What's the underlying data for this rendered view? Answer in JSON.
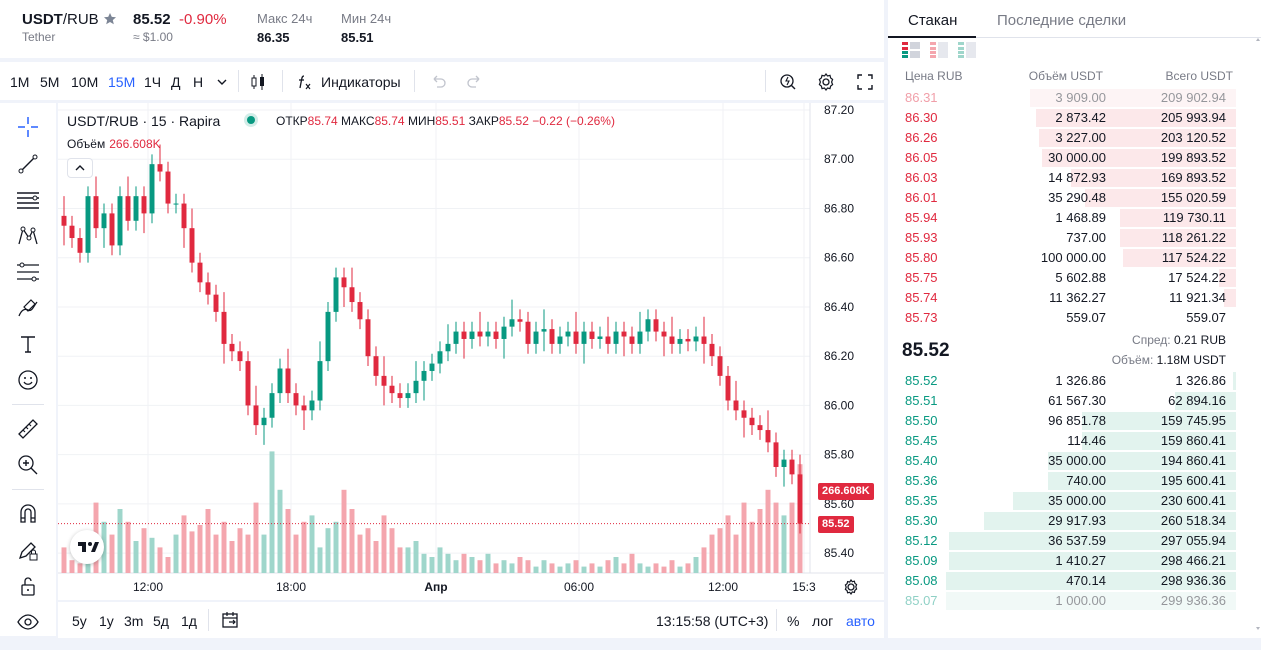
{
  "header": {
    "symbol_base": "USDT",
    "symbol_quote": "RUB",
    "asset_name": "Tether",
    "last_price": "85.52",
    "change_pct": "-0.90%",
    "approx_usd": "≈ $1.00",
    "high_label": "Макс 24ч",
    "high_value": "86.35",
    "low_label": "Мин 24ч",
    "low_value": "85.51"
  },
  "toolbar": {
    "timeframes": [
      "1М",
      "5М",
      "10М",
      "15М",
      "1Ч",
      "Д",
      "Н"
    ],
    "active_timeframe": "15М",
    "indicators_label": "Индикаторы",
    "icons": [
      "chevron-down-icon",
      "candles-icon",
      "fx-icon",
      "undo-icon",
      "redo-icon",
      "quick-search-icon",
      "settings-icon",
      "fullscreen-icon"
    ]
  },
  "left_tools": [
    "crosshair-icon",
    "trend-line-icon",
    "horizontal-lines-icon",
    "pattern-icon",
    "fib-icon",
    "brush-icon",
    "text-icon",
    "emoji-icon",
    "ruler-icon",
    "zoom-in-icon",
    "magnet-icon",
    "lock-drawing-icon",
    "lock-icon",
    "eye-icon"
  ],
  "chart": {
    "title": "USDT/RUB · 15 · Rapira",
    "ohlc": {
      "open_label": "ОТКР",
      "open": "85.74",
      "high_label": "МАКС",
      "high": "85.74",
      "low_label": "МИН",
      "low": "85.51",
      "close_label": "ЗАКР",
      "close": "85.52",
      "change": "−0.22 (−0.26%)"
    },
    "volume_label": "Объём",
    "volume_value": "266.608K",
    "price_tag": "85.52",
    "volume_tag": "266.608K",
    "colors": {
      "up": "#089981",
      "down": "#e0293f",
      "up_vol": "#9fd6cb",
      "down_vol": "#f4a6ae"
    }
  },
  "chart_data": {
    "type": "candlestick",
    "y_ticks": [
      "87.20",
      "87.00",
      "86.80",
      "86.60",
      "86.40",
      "86.20",
      "86.00",
      "85.80",
      "85.60",
      "85.40"
    ],
    "ylim": [
      85.36,
      87.2
    ],
    "x_ticks": [
      "12:00",
      "18:00",
      "Апр",
      "06:00",
      "12:00",
      "15:3"
    ],
    "close_series": [
      86.73,
      86.68,
      86.62,
      86.85,
      86.72,
      86.78,
      86.65,
      86.85,
      86.75,
      86.85,
      86.78,
      86.98,
      86.95,
      86.82,
      86.82,
      86.72,
      86.58,
      86.5,
      86.45,
      86.38,
      86.25,
      86.22,
      86.18,
      86.0,
      85.92,
      85.95,
      86.05,
      86.15,
      86.05,
      86.0,
      85.98,
      86.02,
      86.18,
      86.38,
      86.52,
      86.48,
      86.42,
      86.35,
      86.2,
      86.12,
      86.08,
      86.05,
      86.03,
      86.05,
      86.1,
      86.14,
      86.17,
      86.22,
      86.25,
      86.3,
      86.27,
      86.3,
      86.28,
      86.3,
      86.27,
      86.32,
      86.35,
      86.34,
      86.25,
      86.3,
      86.31,
      86.25,
      86.28,
      86.3,
      86.25,
      86.3,
      86.27,
      86.28,
      86.25,
      86.3,
      86.28,
      86.25,
      86.3,
      86.35,
      86.3,
      86.28,
      86.25,
      86.27,
      86.26,
      86.28,
      86.25,
      86.2,
      86.12,
      86.02,
      85.98,
      85.95,
      85.92,
      85.9,
      85.85,
      85.75,
      85.78,
      85.72,
      85.52
    ],
    "volume_series": [
      0.08,
      0.04,
      0.03,
      0.06,
      0.22,
      0.16,
      0.12,
      0.2,
      0.16,
      0.1,
      0.14,
      0.11,
      0.08,
      0.05,
      0.12,
      0.18,
      0.13,
      0.15,
      0.2,
      0.12,
      0.16,
      0.1,
      0.14,
      0.12,
      0.22,
      0.12,
      0.38,
      0.26,
      0.2,
      0.12,
      0.16,
      0.18,
      0.08,
      0.14,
      0.16,
      0.26,
      0.2,
      0.12,
      0.14,
      0.1,
      0.18,
      0.14,
      0.08,
      0.08,
      0.1,
      0.06,
      0.05,
      0.08,
      0.06,
      0.04,
      0.06,
      0.05,
      0.04,
      0.06,
      0.03,
      0.04,
      0.03,
      0.05,
      0.04,
      0.02,
      0.04,
      0.03,
      0.02,
      0.03,
      0.04,
      0.02,
      0.03,
      0.02,
      0.04,
      0.05,
      0.03,
      0.06,
      0.03,
      0.02,
      0.03,
      0.02,
      0.04,
      0.02,
      0.03,
      0.05,
      0.08,
      0.12,
      0.14,
      0.18,
      0.12,
      0.22,
      0.16,
      0.2,
      0.26,
      0.22,
      0.18,
      0.22,
      0.34
    ]
  },
  "bottom": {
    "ranges": [
      "5y",
      "1y",
      "3m",
      "5д",
      "1д"
    ],
    "time": "13:15:58 (UTC+3)",
    "percent": "%",
    "log": "лог",
    "auto": "авто"
  },
  "book": {
    "tab_orders": "Стакан",
    "tab_trades": "Последние сделки",
    "col_price": "Цена RUB",
    "col_volume": "Объём USDT",
    "col_total": "Всего USDT",
    "asks": [
      {
        "price": "86.31",
        "amount": "3 909.00",
        "total": "209 902.94",
        "depth": 0.71
      },
      {
        "price": "86.30",
        "amount": "2 873.42",
        "total": "205 993.94",
        "depth": 0.69
      },
      {
        "price": "86.26",
        "amount": "3 227.00",
        "total": "203 120.52",
        "depth": 0.68
      },
      {
        "price": "86.05",
        "amount": "30 000.00",
        "total": "199 893.52",
        "depth": 0.67
      },
      {
        "price": "86.03",
        "amount": "14 872.93",
        "total": "169 893.52",
        "depth": 0.57
      },
      {
        "price": "86.01",
        "amount": "35 290.48",
        "total": "155 020.59",
        "depth": 0.52
      },
      {
        "price": "85.94",
        "amount": "1 468.89",
        "total": "119 730.11",
        "depth": 0.4
      },
      {
        "price": "85.93",
        "amount": "737.00",
        "total": "118 261.22",
        "depth": 0.4
      },
      {
        "price": "85.80",
        "amount": "100 000.00",
        "total": "117 524.22",
        "depth": 0.39
      },
      {
        "price": "85.75",
        "amount": "5 602.88",
        "total": "17 524.22",
        "depth": 0.06
      },
      {
        "price": "85.74",
        "amount": "11 362.27",
        "total": "11 921.34",
        "depth": 0.04
      },
      {
        "price": "85.73",
        "amount": "559.07",
        "total": "559.07",
        "depth": 0.0
      }
    ],
    "spread_label": "Спред:",
    "spread_value": "0.21 RUB",
    "mid_price": "85.52",
    "volume_label": "Объём:",
    "volume_value": "1.18M USDT",
    "bids": [
      {
        "price": "85.52",
        "amount": "1 326.86",
        "total": "1 326.86",
        "depth": 0.01
      },
      {
        "price": "85.51",
        "amount": "61 567.30",
        "total": "62 894.16",
        "depth": 0.21
      },
      {
        "price": "85.50",
        "amount": "96 851.78",
        "total": "159 745.95",
        "depth": 0.53
      },
      {
        "price": "85.45",
        "amount": "114.46",
        "total": "159 860.41",
        "depth": 0.53
      },
      {
        "price": "85.40",
        "amount": "35 000.00",
        "total": "194 860.41",
        "depth": 0.65
      },
      {
        "price": "85.36",
        "amount": "740.00",
        "total": "195 600.41",
        "depth": 0.65
      },
      {
        "price": "85.35",
        "amount": "35 000.00",
        "total": "230 600.41",
        "depth": 0.77
      },
      {
        "price": "85.30",
        "amount": "29 917.93",
        "total": "260 518.34",
        "depth": 0.87
      },
      {
        "price": "85.12",
        "amount": "36 537.59",
        "total": "297 055.94",
        "depth": 0.99
      },
      {
        "price": "85.09",
        "amount": "1 410.27",
        "total": "298 466.21",
        "depth": 0.99
      },
      {
        "price": "85.08",
        "amount": "470.14",
        "total": "298 936.36",
        "depth": 1.0
      },
      {
        "price": "85.07",
        "amount": "1 000.00",
        "total": "299 936.36",
        "depth": 1.0
      }
    ]
  }
}
